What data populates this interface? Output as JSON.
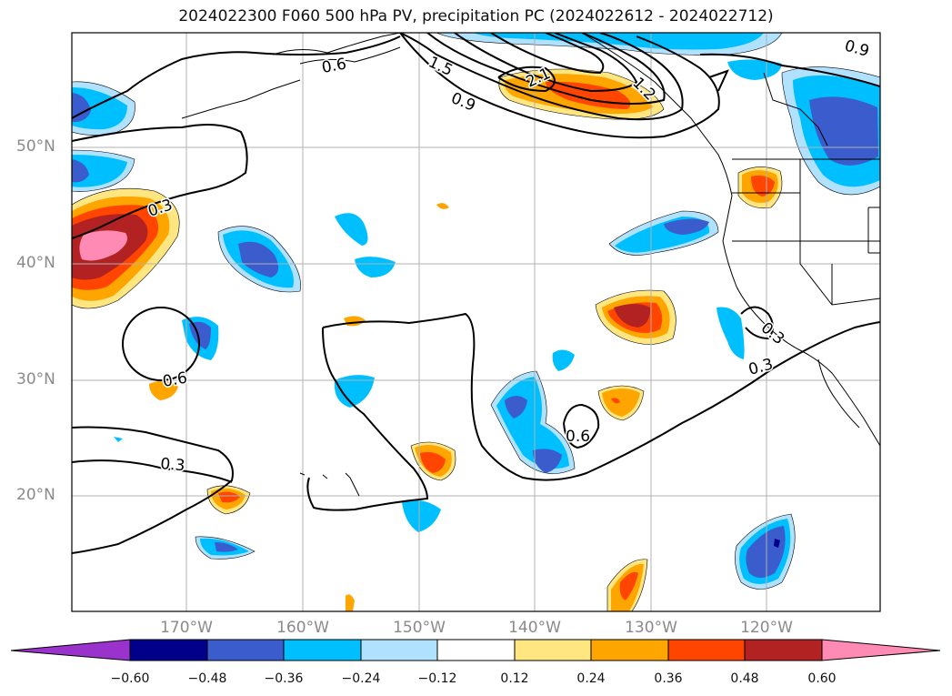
{
  "title": "2024022300 F060 500 hPa PV, precipitation PC (2024022612 - 2024022712)",
  "lat_labels": [
    "50°N",
    "40°N",
    "30°N",
    "20°N"
  ],
  "lon_labels": [
    "170°W",
    "160°W",
    "150°W",
    "140°W",
    "130°W",
    "120°W"
  ],
  "contour_labels": [
    "0.3",
    "0.3",
    "0.3",
    "0.3",
    "0.6",
    "0.6",
    "0.6",
    "0.9",
    "0.9",
    "1.2",
    "1.5",
    "2.1"
  ],
  "colorbar": {
    "labels": [
      "−0.60",
      "−0.48",
      "−0.36",
      "−0.24",
      "−0.12",
      "0.12",
      "0.24",
      "0.36",
      "0.48",
      "0.60"
    ],
    "colors": [
      "#9933cc",
      "#00008b",
      "#3a5ccc",
      "#00bfff",
      "#b0e2ff",
      "#ffffff",
      "#ffe680",
      "#ffa500",
      "#ff4500",
      "#b22222",
      "#ff8ab4"
    ]
  },
  "colors": {
    "gridline": "#b0b0b0",
    "contour": "#000000",
    "neg_weak": "#b0e2ff",
    "neg_mid": "#00bfff",
    "neg_strong": "#3a5ccc",
    "pos_weak": "#ffe680",
    "pos_mid": "#ffa500",
    "pos_strong": "#ff4500",
    "pos_vstrong": "#b22222",
    "pos_max": "#ff8ab4"
  }
}
